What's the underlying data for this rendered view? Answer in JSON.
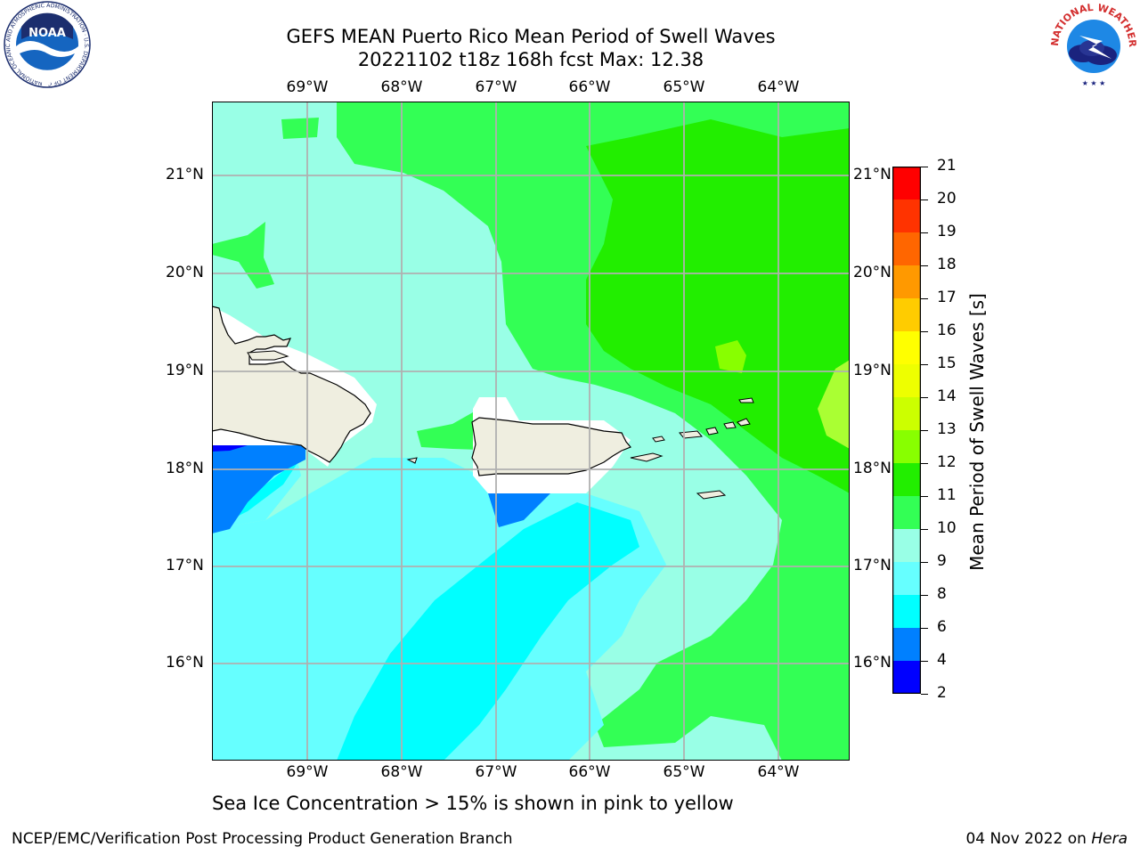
{
  "title": {
    "line1": "GEFS MEAN Puerto Rico Mean Period of Swell Waves",
    "line2": "20221102 t18z 168h fcst   Max: 12.38"
  },
  "axes": {
    "lon_labels": [
      "69°W",
      "68°W",
      "67°W",
      "66°W",
      "65°W",
      "64°W"
    ],
    "lat_labels": [
      "21°N",
      "20°N",
      "19°N",
      "18°N",
      "17°N",
      "16°N"
    ]
  },
  "colorbar": {
    "label": "Mean Period of Swell Waves [s]",
    "ticks": [
      "21",
      "20",
      "19",
      "18",
      "17",
      "16",
      "15",
      "14",
      "13",
      "12",
      "11",
      "10",
      "9",
      "8",
      "6",
      "4",
      "2"
    ],
    "colors": {
      "2-4": "#0000ff",
      "4-6": "#0080ff",
      "6-8": "#00ffff",
      "8-9": "#66ffff",
      "9-10": "#99ffe6",
      "10-11": "#33ff55",
      "11-12": "#22ee00",
      "12-13": "#88ff00",
      "13-14": "#ccff00",
      "14-15": "#eeff00",
      "15-16": "#ffff00",
      "16-17": "#ffcc00",
      "17-18": "#ff9900",
      "18-19": "#ff6600",
      "19-20": "#ff3300",
      "20-21": "#ff0000"
    }
  },
  "caption": "Sea Ice Concentration > 15% is shown in pink to yellow",
  "footer": {
    "left": "NCEP/EMC/Verification Post Processing Product Generation Branch",
    "right_prefix": "04 Nov 2022 on ",
    "right_host": "Hera"
  },
  "logos": {
    "noaa": "NOAA",
    "nws_ring": "NATIONAL WEATHER SERVICE",
    "noaa_ring": "NATIONAL OCEANIC AND ATMOSPHERIC ADMINISTRATION · U.S. DEPARTMENT OF COMMERCE"
  }
}
